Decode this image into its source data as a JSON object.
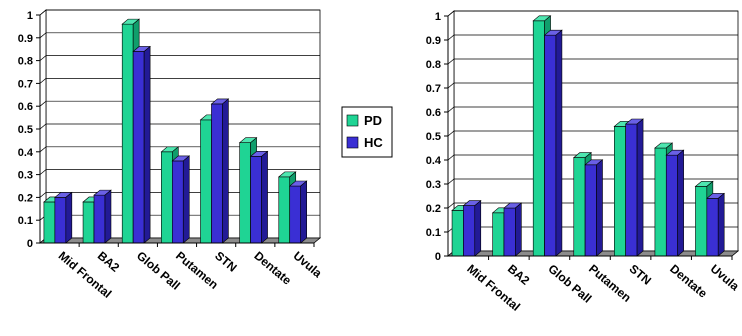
{
  "colors": {
    "PD": "#1fd494",
    "PD_side": "#109e6c",
    "PD_top": "#4ee6b0",
    "HC": "#3a2fd4",
    "HC_side": "#221a96",
    "HC_top": "#6a60e6",
    "floor": "#8c8c8c",
    "wall": "#ffffff",
    "axis": "#000000"
  },
  "legend": {
    "entries": [
      {
        "name": "PD",
        "color_key": "PD"
      },
      {
        "name": "HC",
        "color_key": "HC"
      }
    ]
  },
  "chart_data": [
    {
      "type": "bar",
      "variant": "3d-clustered",
      "categories": [
        "Mid Frontal",
        "BA2",
        "Glob Pall",
        "Putamen",
        "STN",
        "Dentate",
        "Uvula"
      ],
      "series": [
        {
          "name": "PD",
          "values": [
            0.18,
            0.18,
            0.96,
            0.4,
            0.54,
            0.44,
            0.29
          ]
        },
        {
          "name": "HC",
          "values": [
            0.2,
            0.21,
            0.84,
            0.36,
            0.61,
            0.38,
            0.25
          ]
        }
      ],
      "ylim": [
        0,
        1
      ],
      "yticks": [
        "0",
        "0.1",
        "0.2",
        "0.3",
        "0.4",
        "0.5",
        "0.6",
        "0.7",
        "0.8",
        "0.9",
        "1"
      ],
      "grid": true,
      "legend_position": "right"
    },
    {
      "type": "bar",
      "variant": "3d-clustered",
      "categories": [
        "Mid Frontal",
        "BA2",
        "Glob Pall",
        "Putamen",
        "STN",
        "Dentate",
        "Uvula"
      ],
      "series": [
        {
          "name": "PD",
          "values": [
            0.19,
            0.18,
            0.98,
            0.41,
            0.54,
            0.45,
            0.29
          ]
        },
        {
          "name": "HC",
          "values": [
            0.21,
            0.2,
            0.92,
            0.38,
            0.55,
            0.42,
            0.24
          ]
        }
      ],
      "ylim": [
        0,
        1
      ],
      "yticks": [
        "0",
        "0.1",
        "0.2",
        "0.3",
        "0.4",
        "0.5",
        "0.6",
        "0.7",
        "0.8",
        "0.9",
        "1"
      ],
      "grid": true,
      "legend_position": "left"
    }
  ]
}
